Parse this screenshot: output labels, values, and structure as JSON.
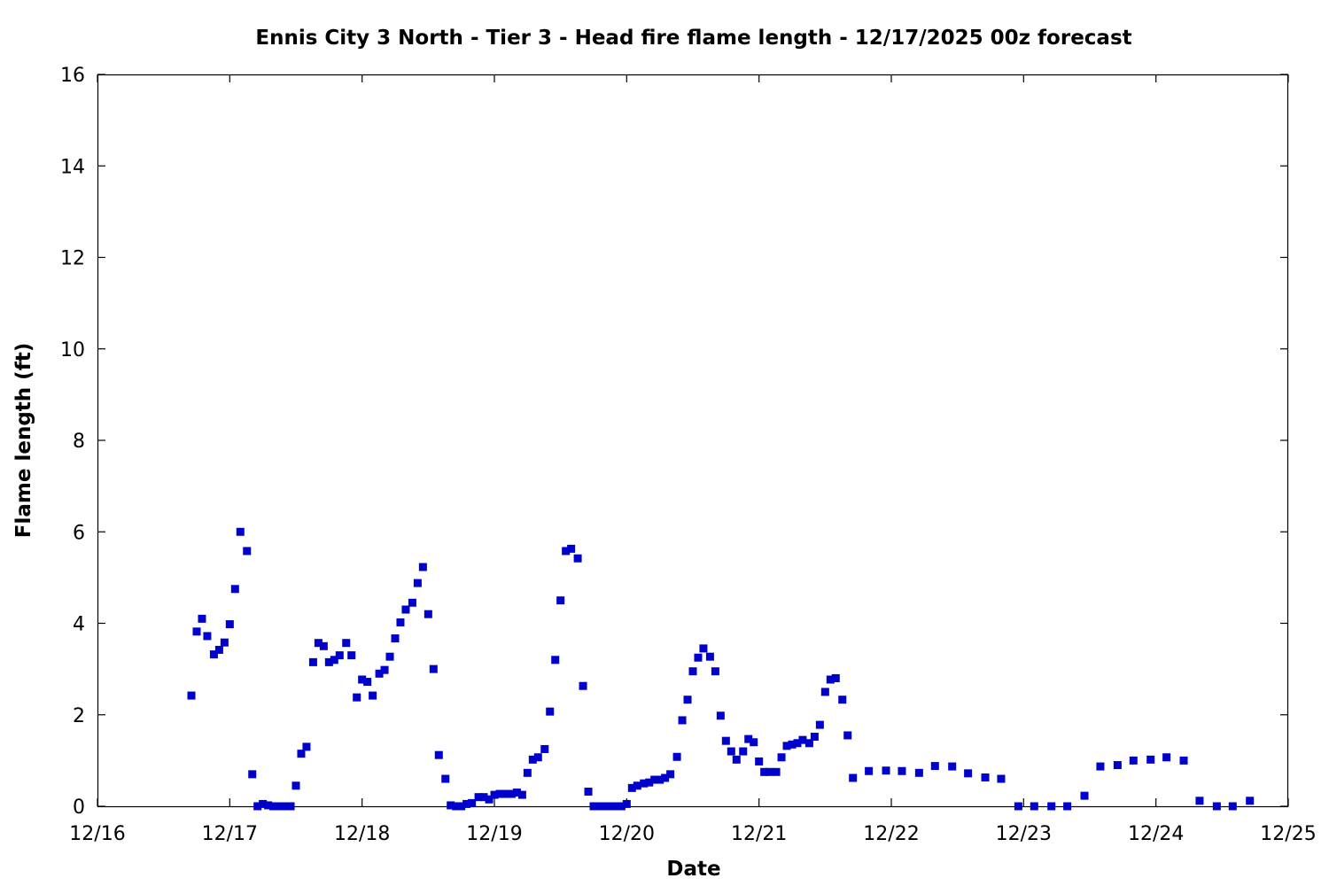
{
  "chart_data": {
    "type": "scatter",
    "title": "Ennis City 3 North - Tier 3 - Head fire flame length - 12/17/2025 00z forecast",
    "xlabel": "Date",
    "ylabel": "Flame length (ft)",
    "x_tick_labels": [
      "12/16",
      "12/17",
      "12/18",
      "12/19",
      "12/20",
      "12/21",
      "12/22",
      "12/23",
      "12/24",
      "12/25"
    ],
    "y_ticks": [
      0,
      2,
      4,
      6,
      8,
      10,
      12,
      14,
      16
    ],
    "xlim_days": [
      16,
      25
    ],
    "ylim": [
      0,
      16
    ],
    "marker_color": "#0000cc",
    "grid": false,
    "legend": false,
    "series": [
      {
        "points": [
          [
            16.71,
            2.42
          ],
          [
            16.75,
            3.82
          ],
          [
            16.79,
            4.1
          ],
          [
            16.83,
            3.72
          ],
          [
            16.88,
            3.32
          ],
          [
            16.92,
            3.42
          ],
          [
            16.96,
            3.58
          ],
          [
            17.0,
            3.98
          ],
          [
            17.04,
            4.75
          ],
          [
            17.08,
            6.0
          ],
          [
            17.13,
            5.58
          ],
          [
            17.17,
            0.7
          ],
          [
            17.21,
            0.0
          ],
          [
            17.25,
            0.05
          ],
          [
            17.29,
            0.02
          ],
          [
            17.33,
            0.0
          ],
          [
            17.38,
            0.0
          ],
          [
            17.42,
            0.0
          ],
          [
            17.46,
            0.0
          ],
          [
            17.5,
            0.45
          ],
          [
            17.54,
            1.15
          ],
          [
            17.58,
            1.3
          ],
          [
            17.63,
            3.15
          ],
          [
            17.67,
            3.57
          ],
          [
            17.71,
            3.5
          ],
          [
            17.75,
            3.15
          ],
          [
            17.79,
            3.2
          ],
          [
            17.83,
            3.3
          ],
          [
            17.88,
            3.57
          ],
          [
            17.92,
            3.3
          ],
          [
            17.96,
            2.38
          ],
          [
            18.0,
            2.77
          ],
          [
            18.04,
            2.72
          ],
          [
            18.08,
            2.42
          ],
          [
            18.13,
            2.9
          ],
          [
            18.17,
            2.98
          ],
          [
            18.21,
            3.27
          ],
          [
            18.25,
            3.67
          ],
          [
            18.29,
            4.02
          ],
          [
            18.33,
            4.3
          ],
          [
            18.38,
            4.45
          ],
          [
            18.42,
            4.88
          ],
          [
            18.46,
            5.23
          ],
          [
            18.5,
            4.2
          ],
          [
            18.54,
            3.0
          ],
          [
            18.58,
            1.12
          ],
          [
            18.63,
            0.6
          ],
          [
            18.67,
            0.02
          ],
          [
            18.71,
            0.0
          ],
          [
            18.75,
            0.0
          ],
          [
            18.79,
            0.05
          ],
          [
            18.83,
            0.07
          ],
          [
            18.88,
            0.2
          ],
          [
            18.92,
            0.2
          ],
          [
            18.96,
            0.15
          ],
          [
            19.0,
            0.25
          ],
          [
            19.04,
            0.27
          ],
          [
            19.08,
            0.27
          ],
          [
            19.13,
            0.27
          ],
          [
            19.17,
            0.3
          ],
          [
            19.21,
            0.25
          ],
          [
            19.25,
            0.73
          ],
          [
            19.29,
            1.02
          ],
          [
            19.33,
            1.07
          ],
          [
            19.38,
            1.25
          ],
          [
            19.42,
            2.07
          ],
          [
            19.46,
            3.2
          ],
          [
            19.5,
            4.5
          ],
          [
            19.54,
            5.58
          ],
          [
            19.58,
            5.63
          ],
          [
            19.63,
            5.42
          ],
          [
            19.67,
            2.63
          ],
          [
            19.71,
            0.32
          ],
          [
            19.75,
            0.0
          ],
          [
            19.79,
            0.0
          ],
          [
            19.83,
            0.0
          ],
          [
            19.88,
            0.0
          ],
          [
            19.92,
            0.0
          ],
          [
            19.96,
            0.0
          ],
          [
            20.0,
            0.05
          ],
          [
            20.04,
            0.4
          ],
          [
            20.08,
            0.45
          ],
          [
            20.13,
            0.5
          ],
          [
            20.17,
            0.52
          ],
          [
            20.21,
            0.58
          ],
          [
            20.25,
            0.58
          ],
          [
            20.29,
            0.62
          ],
          [
            20.33,
            0.7
          ],
          [
            20.38,
            1.08
          ],
          [
            20.42,
            1.88
          ],
          [
            20.46,
            2.33
          ],
          [
            20.5,
            2.95
          ],
          [
            20.54,
            3.25
          ],
          [
            20.58,
            3.45
          ],
          [
            20.63,
            3.27
          ],
          [
            20.67,
            2.95
          ],
          [
            20.71,
            1.98
          ],
          [
            20.75,
            1.43
          ],
          [
            20.79,
            1.2
          ],
          [
            20.83,
            1.02
          ],
          [
            20.88,
            1.2
          ],
          [
            20.92,
            1.47
          ],
          [
            20.96,
            1.4
          ],
          [
            21.0,
            0.98
          ],
          [
            21.04,
            0.75
          ],
          [
            21.08,
            0.75
          ],
          [
            21.13,
            0.75
          ],
          [
            21.17,
            1.07
          ],
          [
            21.21,
            1.32
          ],
          [
            21.25,
            1.35
          ],
          [
            21.29,
            1.38
          ],
          [
            21.33,
            1.45
          ],
          [
            21.38,
            1.38
          ],
          [
            21.42,
            1.52
          ],
          [
            21.46,
            1.78
          ],
          [
            21.5,
            2.5
          ],
          [
            21.54,
            2.77
          ],
          [
            21.58,
            2.8
          ],
          [
            21.63,
            2.33
          ],
          [
            21.67,
            1.55
          ],
          [
            21.71,
            0.62
          ],
          [
            21.83,
            0.77
          ],
          [
            21.96,
            0.78
          ],
          [
            22.08,
            0.77
          ],
          [
            22.21,
            0.73
          ],
          [
            22.33,
            0.88
          ],
          [
            22.46,
            0.87
          ],
          [
            22.58,
            0.72
          ],
          [
            22.71,
            0.63
          ],
          [
            22.83,
            0.6
          ],
          [
            22.96,
            0.0
          ],
          [
            23.08,
            0.0
          ],
          [
            23.21,
            0.0
          ],
          [
            23.33,
            0.0
          ],
          [
            23.46,
            0.23
          ],
          [
            23.58,
            0.87
          ],
          [
            23.71,
            0.9
          ],
          [
            23.83,
            1.0
          ],
          [
            23.96,
            1.02
          ],
          [
            24.08,
            1.07
          ],
          [
            24.21,
            1.0
          ],
          [
            24.33,
            0.12
          ],
          [
            24.46,
            0.0
          ],
          [
            24.58,
            0.0
          ],
          [
            24.71,
            0.12
          ]
        ]
      }
    ]
  }
}
